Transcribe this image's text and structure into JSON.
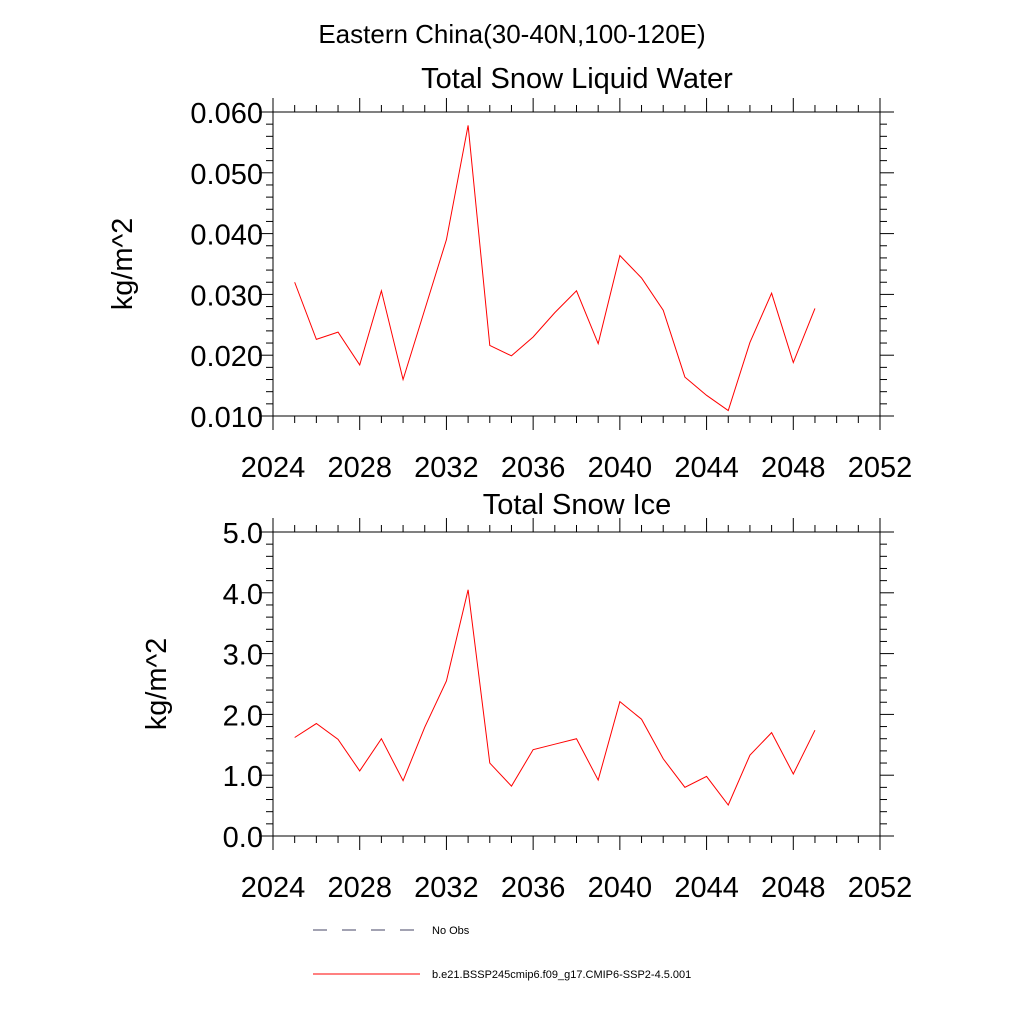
{
  "suptitle": "Eastern China(30-40N,100-120E)",
  "legend": {
    "entries": [
      {
        "label": "No Obs",
        "color": "#444466",
        "dash": "dashed"
      },
      {
        "label": "b.e21.BSSP245cmip6.f09_g17.CMIP6-SSP2-4.5.001",
        "color": "#ff0000",
        "dash": "solid"
      }
    ]
  },
  "chart_data": [
    {
      "type": "line",
      "title": "Total Snow Liquid Water",
      "xlabel": "",
      "ylabel": "kg/m^2",
      "xlim": [
        2024,
        2052
      ],
      "ylim": [
        0.01,
        0.06
      ],
      "xticks": [
        2024,
        2028,
        2032,
        2036,
        2040,
        2044,
        2048,
        2052
      ],
      "xtick_labels": [
        "2024",
        "2028",
        "2032",
        "2036",
        "2040",
        "2044",
        "2048",
        "2052"
      ],
      "yticks": [
        0.01,
        0.02,
        0.03,
        0.04,
        0.05,
        0.06
      ],
      "ytick_labels": [
        "0.010",
        "0.020",
        "0.030",
        "0.040",
        "0.050",
        "0.060"
      ],
      "grid": false,
      "series": [
        {
          "color": "#ff0000",
          "x": [
            2025,
            2026,
            2027,
            2028,
            2029,
            2030,
            2031,
            2032,
            2033,
            2034,
            2035,
            2036,
            2037,
            2038,
            2039,
            2040,
            2041,
            2042,
            2043,
            2044,
            2045,
            2046,
            2047,
            2048,
            2049
          ],
          "values": [
            0.032,
            0.0226,
            0.0238,
            0.0184,
            0.0306,
            0.016,
            0.0275,
            0.039,
            0.0578,
            0.0216,
            0.0199,
            0.023,
            0.027,
            0.0306,
            0.0219,
            0.0364,
            0.0327,
            0.0274,
            0.0164,
            0.0134,
            0.0109,
            0.0221,
            0.0302,
            0.0188,
            0.0277
          ]
        }
      ]
    },
    {
      "type": "line",
      "title": "Total Snow Ice",
      "xlabel": "",
      "ylabel": "kg/m^2",
      "xlim": [
        2024,
        2052
      ],
      "ylim": [
        0.0,
        5.0
      ],
      "xticks": [
        2024,
        2028,
        2032,
        2036,
        2040,
        2044,
        2048,
        2052
      ],
      "xtick_labels": [
        "2024",
        "2028",
        "2032",
        "2036",
        "2040",
        "2044",
        "2048",
        "2052"
      ],
      "yticks": [
        0.0,
        1.0,
        2.0,
        3.0,
        4.0,
        5.0
      ],
      "ytick_labels": [
        "0.0",
        "1.0",
        "2.0",
        "3.0",
        "4.0",
        "5.0"
      ],
      "grid": false,
      "series": [
        {
          "color": "#ff0000",
          "x": [
            2025,
            2026,
            2027,
            2028,
            2029,
            2030,
            2031,
            2032,
            2033,
            2034,
            2035,
            2036,
            2037,
            2038,
            2039,
            2040,
            2041,
            2042,
            2043,
            2044,
            2045,
            2046,
            2047,
            2048,
            2049
          ],
          "values": [
            1.62,
            1.85,
            1.59,
            1.07,
            1.6,
            0.91,
            1.79,
            2.55,
            4.05,
            1.2,
            0.82,
            1.42,
            1.51,
            1.6,
            0.92,
            2.21,
            1.92,
            1.27,
            0.8,
            0.98,
            0.51,
            1.33,
            1.7,
            1.02,
            1.74
          ]
        }
      ]
    }
  ]
}
